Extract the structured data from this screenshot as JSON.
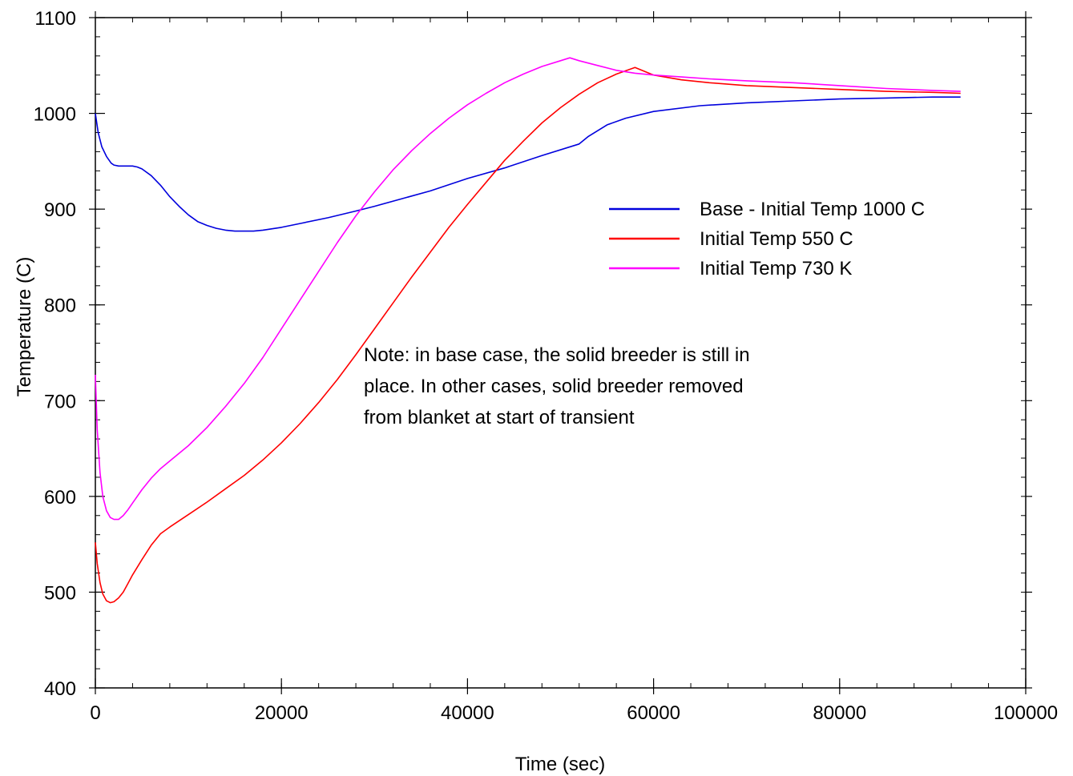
{
  "chart_data": {
    "type": "line",
    "title": "",
    "xlabel": "Time (sec)",
    "ylabel": "Temperature (C)",
    "xlim": [
      0,
      100000
    ],
    "ylim": [
      400,
      1100
    ],
    "xticks": [
      "0",
      "20000",
      "40000",
      "60000",
      "80000",
      "100000"
    ],
    "yticks": [
      "400",
      "500",
      "600",
      "700",
      "800",
      "900",
      "1000",
      "1100"
    ],
    "grid": false,
    "legend_position": "upper-right",
    "series": [
      {
        "name": "Base - Initial Temp 1000 C",
        "color": "#0000dd",
        "x": [
          0,
          300,
          700,
          1200,
          1700,
          2000,
          2500,
          3000,
          3500,
          4000,
          4500,
          5000,
          6000,
          7000,
          8000,
          9000,
          10000,
          11000,
          12000,
          13000,
          14000,
          15000,
          16000,
          17000,
          18000,
          20000,
          22000,
          25000,
          28000,
          30000,
          33000,
          36000,
          40000,
          44000,
          48000,
          52000,
          53000,
          55000,
          57000,
          60000,
          65000,
          70000,
          75000,
          80000,
          85000,
          90000,
          93000
        ],
        "y": [
          1000,
          980,
          965,
          955,
          948,
          946,
          945,
          945,
          945,
          945,
          944,
          942,
          935,
          925,
          913,
          903,
          894,
          887,
          883,
          880,
          878,
          877,
          877,
          877,
          878,
          881,
          885,
          891,
          898,
          903,
          911,
          919,
          932,
          943,
          956,
          968,
          976,
          988,
          995,
          1002,
          1008,
          1011,
          1013,
          1015,
          1016,
          1017,
          1017
        ]
      },
      {
        "name": "Initial Temp 550 C",
        "color": "#ff0000",
        "x": [
          0,
          200,
          500,
          800,
          1200,
          1600,
          2000,
          2500,
          3000,
          3500,
          4000,
          5000,
          6000,
          7000,
          8000,
          10000,
          12000,
          14000,
          16000,
          18000,
          20000,
          22000,
          24000,
          26000,
          28000,
          30000,
          32000,
          34000,
          36000,
          38000,
          40000,
          42000,
          44000,
          46000,
          48000,
          50000,
          52000,
          54000,
          56000,
          58000,
          58500,
          60000,
          63000,
          66000,
          70000,
          75000,
          80000,
          85000,
          90000,
          93000
        ],
        "y": [
          552,
          530,
          510,
          498,
          491,
          489,
          490,
          494,
          500,
          509,
          518,
          534,
          549,
          561,
          568,
          581,
          594,
          608,
          622,
          638,
          656,
          676,
          698,
          722,
          748,
          775,
          802,
          829,
          855,
          881,
          905,
          928,
          951,
          971,
          990,
          1006,
          1020,
          1032,
          1041,
          1048,
          1046,
          1040,
          1035,
          1032,
          1029,
          1027,
          1025,
          1023,
          1022,
          1021
        ]
      },
      {
        "name": "Initial Temp 730 K",
        "color": "#ff00ff",
        "x": [
          0,
          200,
          500,
          800,
          1200,
          1600,
          2000,
          2500,
          3000,
          3500,
          4000,
          5000,
          6000,
          7000,
          8000,
          10000,
          12000,
          14000,
          16000,
          18000,
          20000,
          22000,
          24000,
          26000,
          28000,
          30000,
          32000,
          34000,
          36000,
          38000,
          40000,
          42000,
          44000,
          46000,
          48000,
          50000,
          51000,
          52000,
          54000,
          56000,
          58000,
          60000,
          63000,
          66000,
          70000,
          75000,
          80000,
          85000,
          90000,
          93000
        ],
        "y": [
          727,
          670,
          625,
          600,
          585,
          578,
          576,
          576,
          580,
          586,
          593,
          607,
          619,
          629,
          637,
          653,
          672,
          694,
          718,
          745,
          775,
          805,
          835,
          865,
          893,
          918,
          941,
          961,
          979,
          995,
          1009,
          1021,
          1032,
          1041,
          1049,
          1055,
          1058,
          1055,
          1050,
          1045,
          1042,
          1040,
          1038,
          1036,
          1034,
          1032,
          1029,
          1026,
          1024,
          1023
        ]
      }
    ],
    "annotation": [
      "Note: in base case, the solid breeder is still in",
      "place.  In other cases, solid breeder removed",
      "from blanket at start of transient"
    ]
  }
}
